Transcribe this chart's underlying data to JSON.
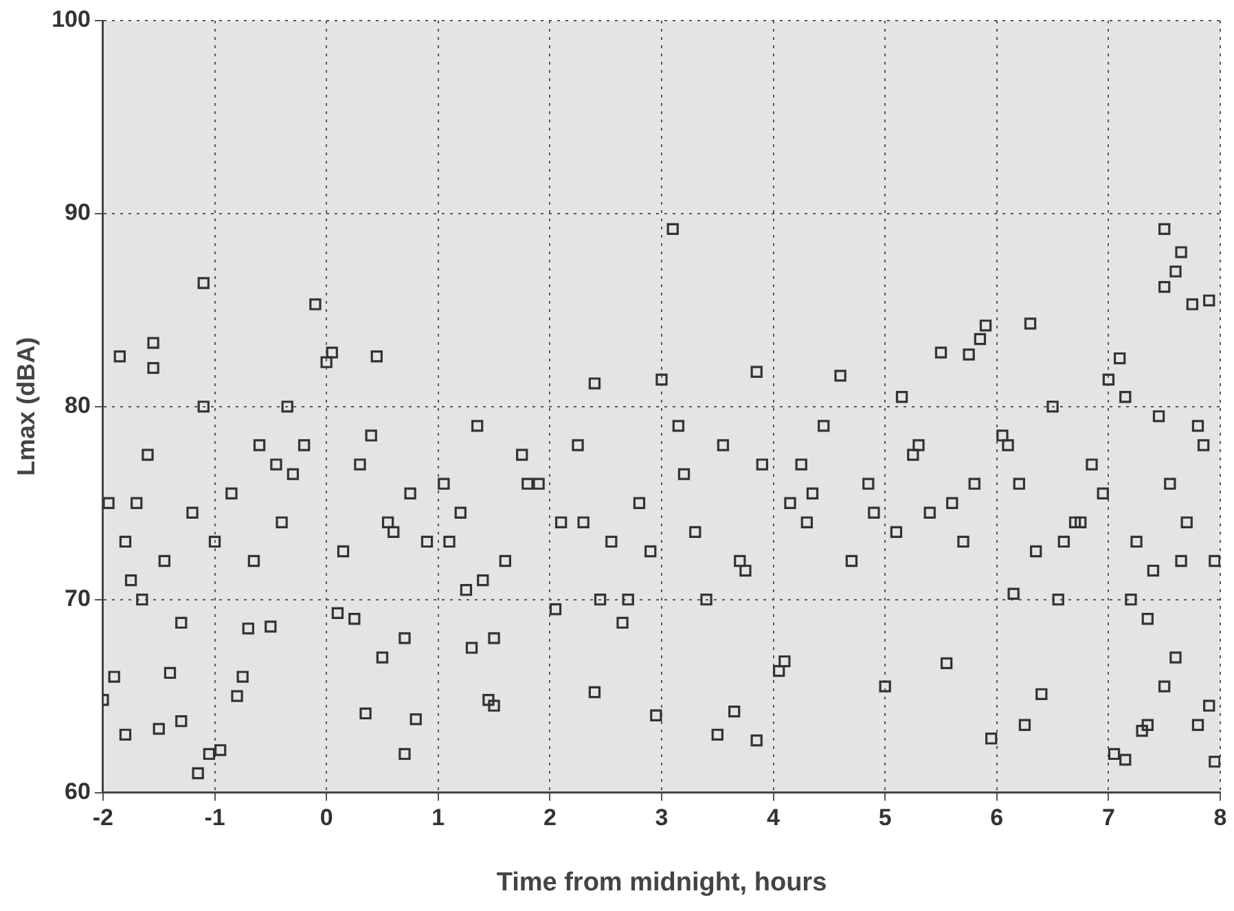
{
  "chart_data": {
    "type": "scatter",
    "xlabel": "Time from midnight, hours",
    "ylabel": "Lmax (dBA)",
    "xlim": [
      -2,
      8
    ],
    "xticks": [
      -2,
      -1,
      0,
      1,
      2,
      3,
      4,
      5,
      6,
      7,
      8
    ],
    "ylim": [
      60,
      100
    ],
    "yticks": [
      60,
      70,
      80,
      90,
      100
    ],
    "grid": true,
    "legend": false,
    "marker": "square",
    "series": [
      {
        "color": "#333333",
        "x": [
          3.1,
          7.5,
          7.65,
          7.6,
          7.5,
          7.9,
          7.75,
          -0.1,
          -1.1,
          -1.55,
          -1.85,
          -1.55,
          0.05,
          0,
          0.45,
          5.75,
          5.85,
          5.9,
          6.3,
          5.5,
          3.85,
          4.6,
          3,
          2.4,
          7,
          7.1,
          -1.15,
          -1.05,
          -0.95,
          0.7,
          0.8,
          7.05,
          7.15,
          7.95,
          3.85,
          3.5,
          5.95,
          6.25,
          2.95,
          3.65,
          4.05,
          4.1,
          5.55,
          5,
          2.4,
          6.4,
          -2,
          -1.8,
          -1.5,
          1.5,
          1.45,
          0.35,
          7.3,
          7.35,
          7.5,
          7.6,
          7.8,
          7.9,
          -0.75,
          -0.8,
          0.5,
          0.7,
          1.3,
          1.5,
          -1.9,
          -1.4,
          -1.3,
          2.05,
          2.45,
          2.65,
          2.7,
          3.4,
          6.55,
          6.15,
          7.2,
          7.35,
          1.25,
          -0.7,
          -0.5,
          0.1,
          0.25,
          -1.65,
          -1.3,
          -1.75,
          -1.95,
          -1.8,
          -1.6,
          -1.45,
          -1.2,
          -1,
          -0.85,
          -0.6,
          -0.4,
          -0.3,
          -0.2,
          0.15,
          0.3,
          0.55,
          0.75,
          0.9,
          1.05,
          1.2,
          1.35,
          1.6,
          1.75,
          1.9,
          2.1,
          2.25,
          2.55,
          2.8,
          2.9,
          3.2,
          3.3,
          3.55,
          3.7,
          3.9,
          4.15,
          4.3,
          4.45,
          4.7,
          4.85,
          5.1,
          5.25,
          5.4,
          5.6,
          5.7,
          6.05,
          6.2,
          6.35,
          6.5,
          6.7,
          6.85,
          6.95,
          7.25,
          7.45,
          7.55,
          7.7,
          7.85,
          7.95,
          -1.7,
          -1.1,
          -0.65,
          0.4,
          1.1,
          1.8,
          2.3,
          3.15,
          3.75,
          4.25,
          4.9,
          5.3,
          5.8,
          6.6,
          7.15,
          7.65,
          -0.35,
          -0.45,
          1.4,
          4.35,
          6.1,
          6.75,
          7.4,
          7.8,
          0.6,
          5.15
        ],
        "values": [
          89.2,
          89.2,
          88,
          87,
          86.2,
          85.5,
          85.3,
          85.3,
          86.4,
          83.3,
          82.6,
          82,
          82.8,
          82.3,
          82.6,
          82.7,
          83.5,
          84.2,
          84.3,
          82.8,
          81.8,
          81.6,
          81.4,
          81.2,
          81.4,
          82.5,
          61,
          62,
          62.2,
          62,
          63.8,
          62,
          61.7,
          61.6,
          62.7,
          63,
          62.8,
          63.5,
          64,
          64.2,
          66.3,
          66.8,
          66.7,
          65.5,
          65.2,
          65.1,
          64.8,
          63,
          63.3,
          64.5,
          64.8,
          64.1,
          63.2,
          63.5,
          65.5,
          67,
          63.5,
          64.5,
          66,
          65,
          67,
          68,
          67.5,
          68,
          66,
          66.2,
          63.7,
          69.5,
          70,
          68.8,
          70,
          70,
          70,
          70.3,
          70,
          69,
          70.5,
          68.5,
          68.6,
          69.3,
          69,
          70,
          68.8,
          71,
          75,
          73,
          77.5,
          72,
          74.5,
          73,
          75.5,
          78,
          74,
          76.5,
          78,
          72.5,
          77,
          74,
          75.5,
          73,
          76,
          74.5,
          79,
          72,
          77.5,
          76,
          74,
          78,
          73,
          75,
          72.5,
          76.5,
          73.5,
          78,
          72,
          77,
          75,
          74,
          79,
          72,
          76,
          73.5,
          77.5,
          74.5,
          75,
          73,
          78.5,
          76,
          72.5,
          80,
          74,
          77,
          75.5,
          73,
          79.5,
          76,
          74,
          78,
          72,
          75,
          80,
          72,
          78.5,
          73,
          76,
          74,
          79,
          71.5,
          77,
          74.5,
          78,
          76,
          73,
          80.5,
          72,
          80,
          77,
          71,
          75.5,
          78,
          74,
          71.5,
          79,
          73.5,
          80.5
        ]
      }
    ]
  }
}
